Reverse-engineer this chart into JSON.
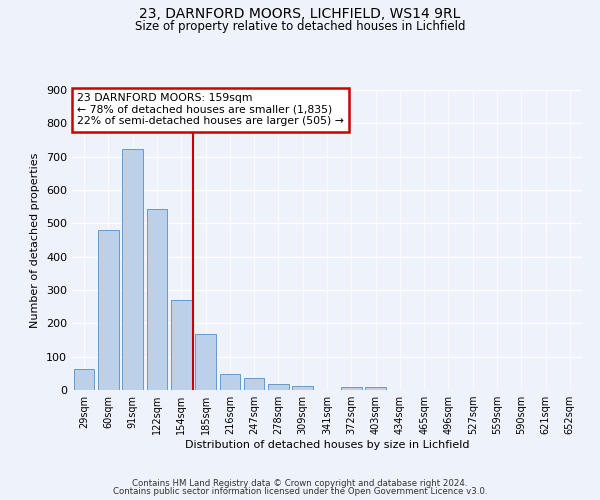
{
  "title1": "23, DARNFORD MOORS, LICHFIELD, WS14 9RL",
  "title2": "Size of property relative to detached houses in Lichfield",
  "xlabel": "Distribution of detached houses by size in Lichfield",
  "ylabel": "Number of detached properties",
  "bar_labels": [
    "29sqm",
    "60sqm",
    "91sqm",
    "122sqm",
    "154sqm",
    "185sqm",
    "216sqm",
    "247sqm",
    "278sqm",
    "309sqm",
    "341sqm",
    "372sqm",
    "403sqm",
    "434sqm",
    "465sqm",
    "496sqm",
    "527sqm",
    "559sqm",
    "590sqm",
    "621sqm",
    "652sqm"
  ],
  "bar_values": [
    62,
    480,
    722,
    543,
    270,
    168,
    47,
    35,
    17,
    13,
    0,
    9,
    9,
    0,
    0,
    0,
    0,
    0,
    0,
    0,
    0
  ],
  "bar_color": "#bdd0e9",
  "bar_edge_color": "#6699cc",
  "property_line_x": 4.5,
  "annotation_line0": "23 DARNFORD MOORS: 159sqm",
  "annotation_line1": "← 78% of detached houses are smaller (1,835)",
  "annotation_line2": "22% of semi-detached houses are larger (505) →",
  "annotation_box_color": "#ffffff",
  "annotation_box_edge_color": "#cc0000",
  "vline_color": "#cc0000",
  "footer1": "Contains HM Land Registry data © Crown copyright and database right 2024.",
  "footer2": "Contains public sector information licensed under the Open Government Licence v3.0.",
  "ylim": [
    0,
    900
  ],
  "background_color": "#eef2fa"
}
